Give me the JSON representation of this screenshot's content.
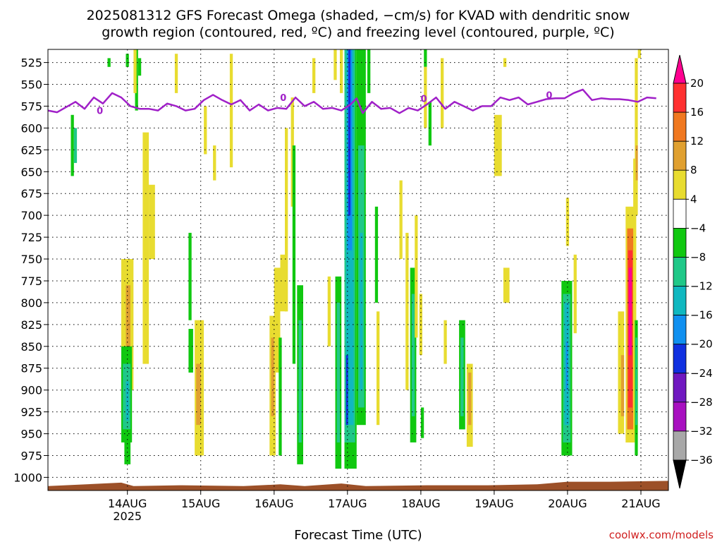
{
  "title": {
    "line1": "2025081312 GFS Forecast Omega (shaded, −cm/s) for KVAD with dendritic snow",
    "line2": "growth region (contoured, red, ºC) and freezing level (contoured, purple, ºC)"
  },
  "xlabel": "Forecast Time (UTC)",
  "credit": "coolwx.com/models",
  "colors": {
    "freezing_level": "#a020c8",
    "terrain": "#9c5028"
  },
  "chart_data": {
    "type": "heatmap",
    "x_axis": {
      "unit": "hours since 2025081312",
      "range": [
        -14,
        189
      ],
      "ticks": [
        {
          "x": 12,
          "label": "14AUG"
        },
        {
          "x": 36,
          "label": "15AUG"
        },
        {
          "x": 60,
          "label": "16AUG"
        },
        {
          "x": 84,
          "label": "17AUG"
        },
        {
          "x": 108,
          "label": "18AUG"
        },
        {
          "x": 132,
          "label": "19AUG"
        },
        {
          "x": 156,
          "label": "20AUG"
        },
        {
          "x": 180,
          "label": "21AUG"
        }
      ],
      "year_label": "2025"
    },
    "y_axis": {
      "unit": "hPa",
      "range": [
        1015,
        510
      ],
      "ticks": [
        525,
        550,
        575,
        600,
        625,
        650,
        675,
        700,
        725,
        750,
        775,
        800,
        825,
        850,
        875,
        900,
        925,
        950,
        975,
        1000
      ]
    },
    "colorbar": {
      "labels": [
        "20",
        "16",
        "12",
        "8",
        "4",
        "−4",
        "−8",
        "−12",
        "−16",
        "−20",
        "−24",
        "−28",
        "−32",
        "−36"
      ],
      "colors": [
        "#ff0090",
        "#ff3030",
        "#f07820",
        "#e0a030",
        "#e8dc30",
        "#ffffff",
        "#10c810",
        "#20c888",
        "#10b8c0",
        "#1090f0",
        "#1030e0",
        "#7018c0",
        "#a810c0",
        "#a8a8a8",
        "#000000"
      ]
    },
    "freezing_level": [
      {
        "t": -14,
        "p": 580
      },
      {
        "t": -11,
        "p": 582
      },
      {
        "t": -8,
        "p": 576
      },
      {
        "t": -5,
        "p": 570
      },
      {
        "t": -2,
        "p": 578
      },
      {
        "t": 1,
        "p": 565
      },
      {
        "t": 4,
        "p": 572
      },
      {
        "t": 7,
        "p": 560
      },
      {
        "t": 10,
        "p": 565
      },
      {
        "t": 13,
        "p": 575
      },
      {
        "t": 16,
        "p": 578
      },
      {
        "t": 19,
        "p": 578
      },
      {
        "t": 22,
        "p": 580
      },
      {
        "t": 25,
        "p": 572
      },
      {
        "t": 28,
        "p": 575
      },
      {
        "t": 31,
        "p": 580
      },
      {
        "t": 34,
        "p": 578
      },
      {
        "t": 37,
        "p": 568
      },
      {
        "t": 40,
        "p": 562
      },
      {
        "t": 43,
        "p": 568
      },
      {
        "t": 46,
        "p": 573
      },
      {
        "t": 49,
        "p": 568
      },
      {
        "t": 52,
        "p": 580
      },
      {
        "t": 55,
        "p": 573
      },
      {
        "t": 58,
        "p": 580
      },
      {
        "t": 61,
        "p": 577
      },
      {
        "t": 64,
        "p": 578
      },
      {
        "t": 67,
        "p": 565
      },
      {
        "t": 70,
        "p": 575
      },
      {
        "t": 73,
        "p": 570
      },
      {
        "t": 76,
        "p": 578
      },
      {
        "t": 79,
        "p": 577
      },
      {
        "t": 82,
        "p": 580
      },
      {
        "t": 85,
        "p": 573
      },
      {
        "t": 87,
        "p": 566
      },
      {
        "t": 89,
        "p": 583
      },
      {
        "t": 92,
        "p": 570
      },
      {
        "t": 95,
        "p": 578
      },
      {
        "t": 98,
        "p": 577
      },
      {
        "t": 101,
        "p": 583
      },
      {
        "t": 104,
        "p": 577
      },
      {
        "t": 107,
        "p": 580
      },
      {
        "t": 110,
        "p": 573
      },
      {
        "t": 113,
        "p": 565
      },
      {
        "t": 116,
        "p": 578
      },
      {
        "t": 119,
        "p": 570
      },
      {
        "t": 122,
        "p": 575
      },
      {
        "t": 125,
        "p": 580
      },
      {
        "t": 128,
        "p": 575
      },
      {
        "t": 131,
        "p": 575
      },
      {
        "t": 134,
        "p": 565
      },
      {
        "t": 137,
        "p": 568
      },
      {
        "t": 140,
        "p": 565
      },
      {
        "t": 143,
        "p": 573
      },
      {
        "t": 146,
        "p": 570
      },
      {
        "t": 149,
        "p": 567
      },
      {
        "t": 152,
        "p": 566
      },
      {
        "t": 155,
        "p": 566
      },
      {
        "t": 158,
        "p": 560
      },
      {
        "t": 161,
        "p": 556
      },
      {
        "t": 164,
        "p": 568
      },
      {
        "t": 167,
        "p": 566
      },
      {
        "t": 170,
        "p": 567
      },
      {
        "t": 173,
        "p": 567
      },
      {
        "t": 176,
        "p": 568
      },
      {
        "t": 179,
        "p": 570
      },
      {
        "t": 182,
        "p": 565
      },
      {
        "t": 185,
        "p": 566
      }
    ],
    "freezing_level_labels": [
      {
        "t": 3,
        "p": 580,
        "label": "0"
      },
      {
        "t": 63,
        "p": 565,
        "label": "0"
      },
      {
        "t": 109,
        "p": 566,
        "label": "0"
      },
      {
        "t": 150,
        "p": 562,
        "label": "0"
      }
    ],
    "terrain": [
      {
        "t": -14,
        "p": 1010
      },
      {
        "t": 10,
        "p": 1006
      },
      {
        "t": 14,
        "p": 1010
      },
      {
        "t": 30,
        "p": 1009
      },
      {
        "t": 50,
        "p": 1010
      },
      {
        "t": 62,
        "p": 1008
      },
      {
        "t": 70,
        "p": 1010
      },
      {
        "t": 82,
        "p": 1007
      },
      {
        "t": 90,
        "p": 1010
      },
      {
        "t": 110,
        "p": 1009
      },
      {
        "t": 130,
        "p": 1009
      },
      {
        "t": 146,
        "p": 1008
      },
      {
        "t": 156,
        "p": 1005
      },
      {
        "t": 170,
        "p": 1005
      },
      {
        "t": 189,
        "p": 1004
      }
    ],
    "omega_regions": [
      {
        "t0": -6.5,
        "t1": -5.5,
        "p0": 585,
        "p1": 655,
        "level": "-4"
      },
      {
        "t0": -5.5,
        "t1": -4.5,
        "p0": 600,
        "p1": 640,
        "level": "-8"
      },
      {
        "t0": 5.5,
        "t1": 6.5,
        "p0": 520,
        "p1": 530,
        "level": "-4"
      },
      {
        "t0": 11.5,
        "t1": 12.5,
        "p0": 515,
        "p1": 530,
        "level": "-4"
      },
      {
        "t0": 14.5,
        "t1": 15.5,
        "p0": 510,
        "p1": 580,
        "level": "-4"
      },
      {
        "t0": 14,
        "t1": 15,
        "p0": 510,
        "p1": 560,
        "level": "4"
      },
      {
        "t0": 17,
        "t1": 19,
        "p0": 605,
        "p1": 870,
        "level": "4"
      },
      {
        "t0": 19,
        "t1": 21,
        "p0": 665,
        "p1": 750,
        "level": "4"
      },
      {
        "t0": 10,
        "t1": 14,
        "p0": 750,
        "p1": 900,
        "level": "4"
      },
      {
        "t0": 11.5,
        "t1": 13,
        "p0": 780,
        "p1": 860,
        "level": "8"
      },
      {
        "t0": 10,
        "t1": 13.5,
        "p0": 850,
        "p1": 960,
        "level": "-4"
      },
      {
        "t0": 10.5,
        "t1": 13,
        "p0": 870,
        "p1": 945,
        "level": "-8"
      },
      {
        "t0": 11.5,
        "t1": 12.5,
        "p0": 890,
        "p1": 935,
        "level": "-12"
      },
      {
        "t0": 11,
        "t1": 13,
        "p0": 945,
        "p1": 985,
        "level": "-4"
      },
      {
        "t0": 15.5,
        "t1": 16.5,
        "p0": 520,
        "p1": 540,
        "level": "-4"
      },
      {
        "t0": 27.5,
        "t1": 28.5,
        "p0": 515,
        "p1": 560,
        "level": "4"
      },
      {
        "t0": 32,
        "t1": 33,
        "p0": 720,
        "p1": 820,
        "level": "-4"
      },
      {
        "t0": 32,
        "t1": 33.5,
        "p0": 830,
        "p1": 880,
        "level": "-4"
      },
      {
        "t0": 34,
        "t1": 37,
        "p0": 820,
        "p1": 975,
        "level": "4"
      },
      {
        "t0": 34.5,
        "t1": 36,
        "p0": 870,
        "p1": 940,
        "level": "8"
      },
      {
        "t0": 37,
        "t1": 38,
        "p0": 575,
        "p1": 630,
        "level": "4"
      },
      {
        "t0": 40,
        "t1": 41,
        "p0": 620,
        "p1": 660,
        "level": "4"
      },
      {
        "t0": 45.5,
        "t1": 46.5,
        "p0": 515,
        "p1": 645,
        "level": "4"
      },
      {
        "t0": 58.5,
        "t1": 60.5,
        "p0": 815,
        "p1": 975,
        "level": "4"
      },
      {
        "t0": 59,
        "t1": 60,
        "p0": 840,
        "p1": 930,
        "level": "8"
      },
      {
        "t0": 60,
        "t1": 62,
        "p0": 760,
        "p1": 880,
        "level": "4"
      },
      {
        "t0": 62,
        "t1": 64,
        "p0": 745,
        "p1": 810,
        "level": "4"
      },
      {
        "t0": 61.5,
        "t1": 62.5,
        "p0": 840,
        "p1": 975,
        "level": "-4"
      },
      {
        "t0": 63.5,
        "t1": 64.5,
        "p0": 600,
        "p1": 810,
        "level": "4"
      },
      {
        "t0": 65.5,
        "t1": 66.5,
        "p0": 565,
        "p1": 690,
        "level": "4"
      },
      {
        "t0": 66,
        "t1": 67,
        "p0": 620,
        "p1": 870,
        "level": "-4"
      },
      {
        "t0": 67.5,
        "t1": 69.5,
        "p0": 780,
        "p1": 985,
        "level": "-4"
      },
      {
        "t0": 68,
        "t1": 69,
        "p0": 820,
        "p1": 960,
        "level": "-8"
      },
      {
        "t0": 72.5,
        "t1": 73.5,
        "p0": 520,
        "p1": 560,
        "level": "4"
      },
      {
        "t0": 77.5,
        "t1": 78.5,
        "p0": 770,
        "p1": 850,
        "level": "4"
      },
      {
        "t0": 80,
        "t1": 82,
        "p0": 770,
        "p1": 990,
        "level": "-4"
      },
      {
        "t0": 80.5,
        "t1": 81.5,
        "p0": 800,
        "p1": 960,
        "level": "-8"
      },
      {
        "t0": 79.5,
        "t1": 80.5,
        "p0": 510,
        "p1": 545,
        "level": "4"
      },
      {
        "t0": 81.5,
        "t1": 82.5,
        "p0": 510,
        "p1": 560,
        "level": "4"
      },
      {
        "t0": 83,
        "t1": 87,
        "p0": 510,
        "p1": 990,
        "level": "-4"
      },
      {
        "t0": 83,
        "t1": 86.5,
        "p0": 510,
        "p1": 960,
        "level": "-8"
      },
      {
        "t0": 83.5,
        "t1": 86,
        "p0": 510,
        "p1": 940,
        "level": "-12"
      },
      {
        "t0": 84,
        "t1": 85.5,
        "p0": 510,
        "p1": 740,
        "level": "-16"
      },
      {
        "t0": 84.3,
        "t1": 85,
        "p0": 510,
        "p1": 700,
        "level": "-20"
      },
      {
        "t0": 83.5,
        "t1": 84.2,
        "p0": 860,
        "p1": 940,
        "level": "-20"
      },
      {
        "t0": 87,
        "t1": 90,
        "p0": 510,
        "p1": 940,
        "level": "-4"
      },
      {
        "t0": 87.5,
        "t1": 89.5,
        "p0": 620,
        "p1": 920,
        "level": "-8"
      },
      {
        "t0": 88,
        "t1": 89,
        "p0": 720,
        "p1": 900,
        "level": "-12"
      },
      {
        "t0": 90.5,
        "t1": 91.5,
        "p0": 510,
        "p1": 560,
        "level": "-4"
      },
      {
        "t0": 93,
        "t1": 94,
        "p0": 690,
        "p1": 800,
        "level": "-4"
      },
      {
        "t0": 93.5,
        "t1": 94.5,
        "p0": 810,
        "p1": 940,
        "level": "4"
      },
      {
        "t0": 101,
        "t1": 102,
        "p0": 660,
        "p1": 750,
        "level": "4"
      },
      {
        "t0": 103,
        "t1": 104,
        "p0": 720,
        "p1": 900,
        "level": "4"
      },
      {
        "t0": 104.5,
        "t1": 106.5,
        "p0": 760,
        "p1": 960,
        "level": "-4"
      },
      {
        "t0": 105,
        "t1": 106,
        "p0": 790,
        "p1": 930,
        "level": "-8"
      },
      {
        "t0": 106,
        "t1": 107,
        "p0": 700,
        "p1": 840,
        "level": "4"
      },
      {
        "t0": 107.5,
        "t1": 108.5,
        "p0": 790,
        "p1": 860,
        "level": "4"
      },
      {
        "t0": 108,
        "t1": 109,
        "p0": 920,
        "p1": 955,
        "level": "-4"
      },
      {
        "t0": 109,
        "t1": 110,
        "p0": 510,
        "p1": 530,
        "level": "-4"
      },
      {
        "t0": 109,
        "t1": 110,
        "p0": 530,
        "p1": 600,
        "level": "4"
      },
      {
        "t0": 110.5,
        "t1": 111.5,
        "p0": 570,
        "p1": 620,
        "level": "-4"
      },
      {
        "t0": 114.5,
        "t1": 115.5,
        "p0": 520,
        "p1": 600,
        "level": "4"
      },
      {
        "t0": 115.5,
        "t1": 116.5,
        "p0": 820,
        "p1": 870,
        "level": "4"
      },
      {
        "t0": 120.5,
        "t1": 122.5,
        "p0": 820,
        "p1": 945,
        "level": "-4"
      },
      {
        "t0": 121,
        "t1": 122,
        "p0": 840,
        "p1": 930,
        "level": "-8"
      },
      {
        "t0": 123,
        "t1": 125,
        "p0": 870,
        "p1": 965,
        "level": "4"
      },
      {
        "t0": 123.5,
        "t1": 124.5,
        "p0": 880,
        "p1": 940,
        "level": "8"
      },
      {
        "t0": 132,
        "t1": 134.5,
        "p0": 585,
        "p1": 655,
        "level": "4"
      },
      {
        "t0": 135,
        "t1": 136,
        "p0": 520,
        "p1": 530,
        "level": "4"
      },
      {
        "t0": 135,
        "t1": 137,
        "p0": 760,
        "p1": 800,
        "level": "4"
      },
      {
        "t0": 154,
        "t1": 157.5,
        "p0": 775,
        "p1": 975,
        "level": "-4"
      },
      {
        "t0": 154.5,
        "t1": 157,
        "p0": 790,
        "p1": 960,
        "level": "-8"
      },
      {
        "t0": 155,
        "t1": 156.5,
        "p0": 800,
        "p1": 940,
        "level": "-12"
      },
      {
        "t0": 155.5,
        "t1": 156,
        "p0": 845,
        "p1": 900,
        "level": "-16"
      },
      {
        "t0": 155.5,
        "t1": 156.5,
        "p0": 680,
        "p1": 735,
        "level": "4"
      },
      {
        "t0": 158,
        "t1": 159,
        "p0": 745,
        "p1": 835,
        "level": "4"
      },
      {
        "t0": 172.5,
        "t1": 174.5,
        "p0": 810,
        "p1": 950,
        "level": "4"
      },
      {
        "t0": 173.5,
        "t1": 174.5,
        "p0": 860,
        "p1": 930,
        "level": "8"
      },
      {
        "t0": 175,
        "t1": 178,
        "p0": 690,
        "p1": 960,
        "level": "4"
      },
      {
        "t0": 175.5,
        "t1": 177.5,
        "p0": 715,
        "p1": 945,
        "level": "12"
      },
      {
        "t0": 175.8,
        "t1": 177.2,
        "p0": 740,
        "p1": 920,
        "level": "16"
      },
      {
        "t0": 176,
        "t1": 177,
        "p0": 760,
        "p1": 860,
        "level": "20"
      },
      {
        "t0": 177.5,
        "t1": 178.5,
        "p0": 635,
        "p1": 950,
        "level": "4"
      },
      {
        "t0": 178,
        "t1": 179,
        "p0": 520,
        "p1": 700,
        "level": "4"
      },
      {
        "t0": 178,
        "t1": 179,
        "p0": 820,
        "p1": 975,
        "level": "-4"
      },
      {
        "t0": 178.2,
        "t1": 178.8,
        "p0": 840,
        "p1": 940,
        "level": "-8"
      },
      {
        "t0": 178.3,
        "t1": 179,
        "p0": 620,
        "p1": 660,
        "level": "8"
      },
      {
        "t0": 179,
        "t1": 180,
        "p0": 510,
        "p1": 520,
        "level": "4"
      }
    ]
  }
}
